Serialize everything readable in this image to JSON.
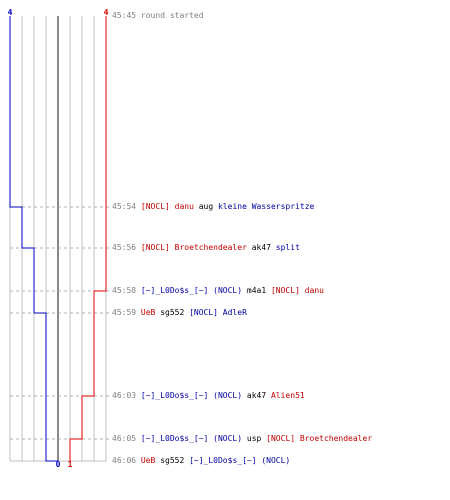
{
  "blue_team_start_count": "4",
  "red_team_start_count": "4",
  "blue_team_end_count": "0",
  "red_team_end_count": "1",
  "colors": {
    "blue_team": "#0000c0",
    "red_team": "#e00000",
    "grid": "#c0c0c0",
    "center": "#606060",
    "dash": "#b0b0b0"
  },
  "chart_data": {
    "type": "line",
    "x": [
      "45:45",
      "45:54",
      "45:56",
      "45:58",
      "45:59",
      "46:03",
      "46:05",
      "46:06"
    ],
    "series": [
      {
        "values": [
          4,
          3,
          2,
          2,
          1,
          1,
          1,
          0
        ]
      },
      {
        "values": [
          4,
          4,
          4,
          3,
          3,
          2,
          1,
          1
        ]
      }
    ],
    "ylim": [
      0,
      4
    ]
  },
  "events": [
    {
      "time": "45:45",
      "parts": [
        {
          "text": "round started",
          "color": "gray"
        }
      ]
    },
    {
      "time": "45:54",
      "parts": [
        {
          "text": "[NOCL] danu",
          "color": "red"
        },
        {
          "text": " aug ",
          "color": "black"
        },
        {
          "text": "kleine Wasserspritze",
          "color": "blue"
        }
      ]
    },
    {
      "time": "45:56",
      "parts": [
        {
          "text": "[NOCL] Broetchendealer",
          "color": "red"
        },
        {
          "text": " ak47 ",
          "color": "black"
        },
        {
          "text": "split",
          "color": "blue"
        }
      ]
    },
    {
      "time": "45:58",
      "parts": [
        {
          "text": "[~]_L0Do$s_[~] (NOCL)",
          "color": "blue"
        },
        {
          "text": " m4a1 ",
          "color": "black"
        },
        {
          "text": "[NOCL] danu",
          "color": "red"
        }
      ]
    },
    {
      "time": "45:59",
      "parts": [
        {
          "text": "UeB",
          "color": "red"
        },
        {
          "text": " sg552 ",
          "color": "black"
        },
        {
          "text": "[NOCL] AdleR",
          "color": "blue"
        }
      ]
    },
    {
      "time": "46:03",
      "parts": [
        {
          "text": "[~]_L0Do$s_[~] (NOCL)",
          "color": "blue"
        },
        {
          "text": " ak47 ",
          "color": "black"
        },
        {
          "text": "Alien51",
          "color": "red"
        }
      ]
    },
    {
      "time": "46:05",
      "parts": [
        {
          "text": "[~]_L0Do$s_[~] (NOCL)",
          "color": "blue"
        },
        {
          "text": " usp ",
          "color": "black"
        },
        {
          "text": "[NOCL] Broetchendealer",
          "color": "red"
        }
      ]
    },
    {
      "time": "46:06",
      "parts": [
        {
          "text": "UeB",
          "color": "red"
        },
        {
          "text": " sg552 ",
          "color": "black"
        },
        {
          "text": "[~]_L0Do$s_[~] (NOCL)",
          "color": "blue"
        }
      ]
    }
  ]
}
